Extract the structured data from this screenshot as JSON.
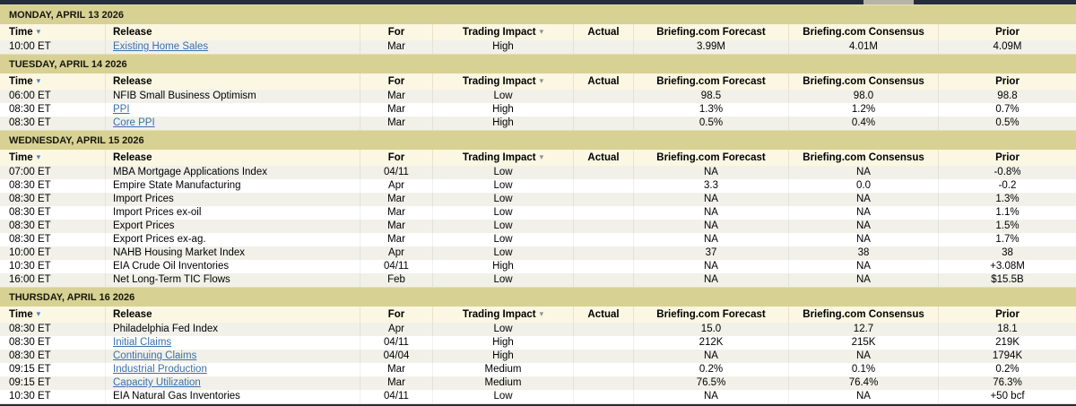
{
  "table": {
    "columns": {
      "time": "Time",
      "release": "Release",
      "for": "For",
      "impact": "Trading Impact",
      "actual": "Actual",
      "forecast": "Briefing.com Forecast",
      "consensus": "Briefing.com Consensus",
      "prior": "Prior"
    },
    "sort_icons": {
      "time": "▾",
      "impact": "▾"
    },
    "sections": [
      {
        "date": "MONDAY, APRIL 13 2026",
        "rows": [
          {
            "time": "10:00 ET",
            "release": "Existing Home Sales",
            "link": true,
            "for": "Mar",
            "impact": "High",
            "actual": "",
            "forecast": "3.99M",
            "consensus": "4.01M",
            "prior": "4.09M"
          }
        ]
      },
      {
        "date": "TUESDAY, APRIL 14 2026",
        "rows": [
          {
            "time": "06:00 ET",
            "release": "NFIB Small Business Optimism",
            "link": false,
            "for": "Mar",
            "impact": "Low",
            "actual": "",
            "forecast": "98.5",
            "consensus": "98.0",
            "prior": "98.8"
          },
          {
            "time": "08:30 ET",
            "release": "PPI",
            "link": true,
            "for": "Mar",
            "impact": "High",
            "actual": "",
            "forecast": "1.3%",
            "consensus": "1.2%",
            "prior": "0.7%"
          },
          {
            "time": "08:30 ET",
            "release": "Core PPI",
            "link": true,
            "for": "Mar",
            "impact": "High",
            "actual": "",
            "forecast": "0.5%",
            "consensus": "0.4%",
            "prior": "0.5%"
          }
        ]
      },
      {
        "date": "WEDNESDAY, APRIL 15 2026",
        "rows": [
          {
            "time": "07:00 ET",
            "release": "MBA Mortgage Applications Index",
            "link": false,
            "for": "04/11",
            "impact": "Low",
            "actual": "",
            "forecast": "NA",
            "consensus": "NA",
            "prior": "-0.8%"
          },
          {
            "time": "08:30 ET",
            "release": "Empire State Manufacturing",
            "link": false,
            "for": "Apr",
            "impact": "Low",
            "actual": "",
            "forecast": "3.3",
            "consensus": "0.0",
            "prior": "-0.2"
          },
          {
            "time": "08:30 ET",
            "release": "Import Prices",
            "link": false,
            "for": "Mar",
            "impact": "Low",
            "actual": "",
            "forecast": "NA",
            "consensus": "NA",
            "prior": "1.3%"
          },
          {
            "time": "08:30 ET",
            "release": "Import Prices ex-oil",
            "link": false,
            "for": "Mar",
            "impact": "Low",
            "actual": "",
            "forecast": "NA",
            "consensus": "NA",
            "prior": "1.1%"
          },
          {
            "time": "08:30 ET",
            "release": "Export Prices",
            "link": false,
            "for": "Mar",
            "impact": "Low",
            "actual": "",
            "forecast": "NA",
            "consensus": "NA",
            "prior": "1.5%"
          },
          {
            "time": "08:30 ET",
            "release": "Export Prices ex-ag.",
            "link": false,
            "for": "Mar",
            "impact": "Low",
            "actual": "",
            "forecast": "NA",
            "consensus": "NA",
            "prior": "1.7%"
          },
          {
            "time": "10:00 ET",
            "release": "NAHB Housing Market Index",
            "link": false,
            "for": "Apr",
            "impact": "Low",
            "actual": "",
            "forecast": "37",
            "consensus": "38",
            "prior": "38"
          },
          {
            "time": "10:30 ET",
            "release": "EIA Crude Oil Inventories",
            "link": false,
            "for": "04/11",
            "impact": "High",
            "actual": "",
            "forecast": "NA",
            "consensus": "NA",
            "prior": "+3.08M"
          },
          {
            "time": "16:00 ET",
            "release": "Net Long-Term TIC Flows",
            "link": false,
            "for": "Feb",
            "impact": "Low",
            "actual": "",
            "forecast": "NA",
            "consensus": "NA",
            "prior": "$15.5B"
          }
        ]
      },
      {
        "date": "THURSDAY, APRIL 16 2026",
        "rows": [
          {
            "time": "08:30 ET",
            "release": "Philadelphia Fed Index",
            "link": false,
            "for": "Apr",
            "impact": "Low",
            "actual": "",
            "forecast": "15.0",
            "consensus": "12.7",
            "prior": "18.1"
          },
          {
            "time": "08:30 ET",
            "release": "Initial Claims",
            "link": true,
            "for": "04/11",
            "impact": "High",
            "actual": "",
            "forecast": "212K",
            "consensus": "215K",
            "prior": "219K"
          },
          {
            "time": "08:30 ET",
            "release": "Continuing Claims",
            "link": true,
            "for": "04/04",
            "impact": "High",
            "actual": "",
            "forecast": "NA",
            "consensus": "NA",
            "prior": "1794K"
          },
          {
            "time": "09:15 ET",
            "release": "Industrial Production",
            "link": true,
            "for": "Mar",
            "impact": "Medium",
            "actual": "",
            "forecast": "0.2%",
            "consensus": "0.1%",
            "prior": "0.2%"
          },
          {
            "time": "09:15 ET",
            "release": "Capacity Utilization",
            "link": true,
            "for": "Mar",
            "impact": "Medium",
            "actual": "",
            "forecast": "76.5%",
            "consensus": "76.4%",
            "prior": "76.3%"
          },
          {
            "time": "10:30 ET",
            "release": "EIA Natural Gas Inventories",
            "link": false,
            "for": "04/11",
            "impact": "Low",
            "actual": "",
            "forecast": "NA",
            "consensus": "NA",
            "prior": "+50 bcf"
          }
        ]
      }
    ]
  },
  "colors": {
    "day_band": "#d8d194",
    "header_bg": "#fbf7e2",
    "row_alt": "#f1f1ea",
    "row_white": "#ffffff",
    "link": "#3c6fa8",
    "sort_arrow_active": "#4d7fb8",
    "sort_arrow_inactive": "#8f8f8b",
    "frame_bar": "#242e3a",
    "scroll_thumb": "#b6b3a9"
  }
}
